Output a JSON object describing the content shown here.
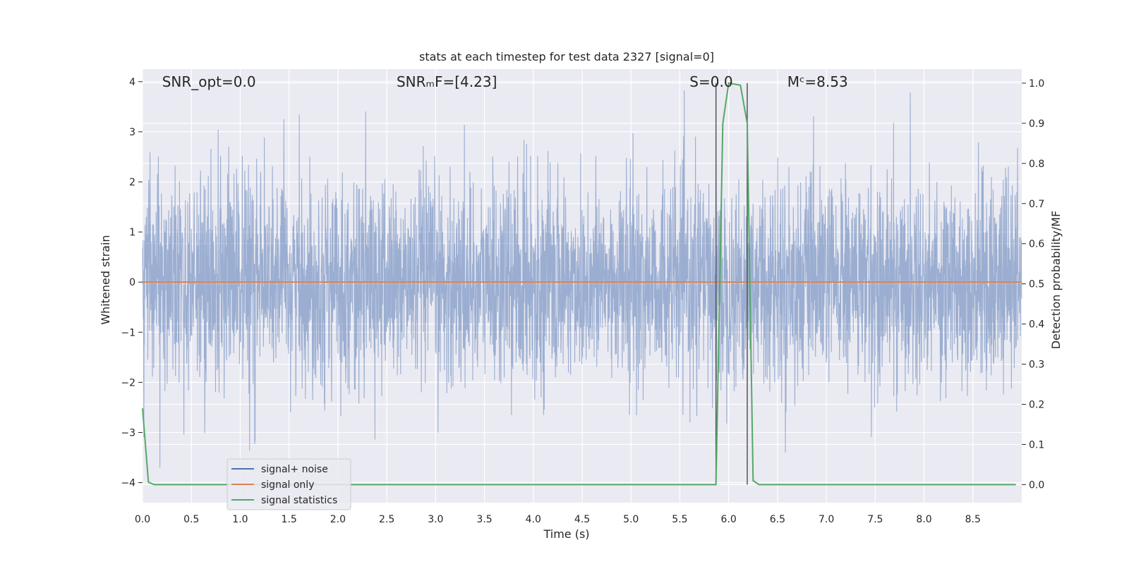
{
  "chart_data": {
    "type": "line",
    "title": "stats at each timestep for test data 2327 [signal=0]",
    "xlabel": "Time (s)",
    "ylabel_left": "Whitened strain",
    "ylabel_right": "Detection probability/MF",
    "xlim": [
      0.0,
      9.0
    ],
    "ylim_left": [
      -4.4,
      4.25
    ],
    "ylim_right": [
      -0.045,
      1.035
    ],
    "x_ticks": [
      0.0,
      0.5,
      1.0,
      1.5,
      2.0,
      2.5,
      3.0,
      3.5,
      4.0,
      4.5,
      5.0,
      5.5,
      6.0,
      6.5,
      7.0,
      7.5,
      8.0,
      8.5
    ],
    "x_tick_labels": [
      "0.0",
      "0.5",
      "1.0",
      "1.5",
      "2.0",
      "2.5",
      "3.0",
      "3.5",
      "4.0",
      "4.5",
      "5.0",
      "5.5",
      "6.0",
      "6.5",
      "7.0",
      "7.5",
      "8.0",
      "8.5"
    ],
    "y_ticks_left": [
      4,
      3,
      2,
      1,
      0,
      -1,
      -2,
      -3,
      -4
    ],
    "y_tick_labels_left": [
      "4",
      "3",
      "2",
      "1",
      "0",
      "−1",
      "−2",
      "−3",
      "−4"
    ],
    "y_ticks_right": [
      1.0,
      0.9,
      0.8,
      0.7,
      0.6,
      0.5,
      0.4,
      0.3,
      0.2,
      0.1,
      0.0
    ],
    "y_tick_labels_right": [
      "1.0",
      "0.9",
      "0.8",
      "0.7",
      "0.6",
      "0.5",
      "0.4",
      "0.3",
      "0.2",
      "0.1",
      "0.0"
    ],
    "grid": true,
    "legend_position": "bottom-left",
    "annotations": [
      {
        "text": "SNR_opt=0.0",
        "x": 0.2
      },
      {
        "text": "SNRₘF=[4.23]",
        "x": 2.6
      },
      {
        "text": "S=0.0",
        "x": 5.6
      },
      {
        "text": "Mᶜ=8.53",
        "x": 6.6
      }
    ],
    "vertical_markers_x": [
      5.87,
      6.19
    ],
    "series": [
      {
        "name": "signal+ noise",
        "color": "#4c72b0",
        "style": "dense whitened noise",
        "envelope_center": 0.0,
        "envelope_std": 1.0,
        "peak_max": 4.0,
        "trough_min": -3.7,
        "x_range": [
          0.0,
          9.0
        ]
      },
      {
        "name": "signal only",
        "color": "#dd8452",
        "x": [
          0.0,
          9.0
        ],
        "y": [
          0.0,
          0.0
        ]
      },
      {
        "name": "signal statistics",
        "color": "#55a868",
        "axis": "right",
        "x": [
          0.0,
          0.06,
          0.12,
          5.87,
          5.94,
          6.0,
          6.12,
          6.19,
          6.25,
          6.31,
          8.94
        ],
        "y": [
          0.19,
          0.006,
          0.0,
          0.0,
          0.9,
          1.0,
          0.995,
          0.9,
          0.01,
          0.0,
          0.0
        ]
      }
    ]
  },
  "legend": {
    "items": [
      {
        "label": "signal+ noise",
        "color": "#4c72b0"
      },
      {
        "label": "signal only",
        "color": "#dd8452"
      },
      {
        "label": "signal statistics",
        "color": "#55a868"
      }
    ]
  },
  "colors": {
    "plot_background": "#eaeaf2",
    "grid": "#ffffff",
    "marker_line": "#555555"
  }
}
